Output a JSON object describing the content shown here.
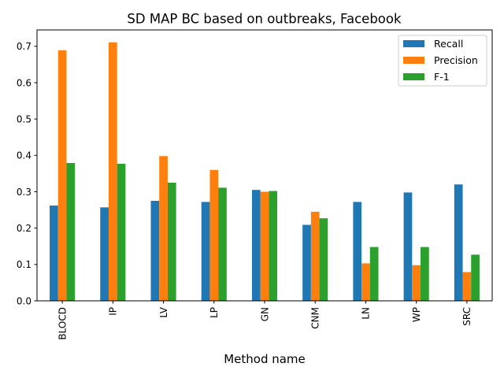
{
  "chart_data": {
    "type": "bar",
    "title": "SD MAP BC based on outbreaks, Facebook",
    "xlabel": "Method name",
    "ylabel": "",
    "ylim": [
      0,
      0.745
    ],
    "yticks": [
      "0.0",
      "0.1",
      "0.2",
      "0.3",
      "0.4",
      "0.5",
      "0.6",
      "0.7"
    ],
    "grid": false,
    "legend_position": "top-right",
    "categories": [
      "BLOCD",
      "IP",
      "LV",
      "LP",
      "GN",
      "CNM",
      "LN",
      "WP",
      "SRC"
    ],
    "series": [
      {
        "name": "Recall",
        "color": "#1f77b4",
        "values": [
          0.262,
          0.257,
          0.275,
          0.272,
          0.305,
          0.209,
          0.272,
          0.298,
          0.32
        ]
      },
      {
        "name": "Precision",
        "color": "#ff7f0e",
        "values": [
          0.689,
          0.711,
          0.398,
          0.36,
          0.3,
          0.245,
          0.103,
          0.098,
          0.079
        ]
      },
      {
        "name": "F-1",
        "color": "#2ca02c",
        "values": [
          0.379,
          0.377,
          0.325,
          0.311,
          0.302,
          0.227,
          0.148,
          0.148,
          0.127
        ]
      }
    ]
  }
}
